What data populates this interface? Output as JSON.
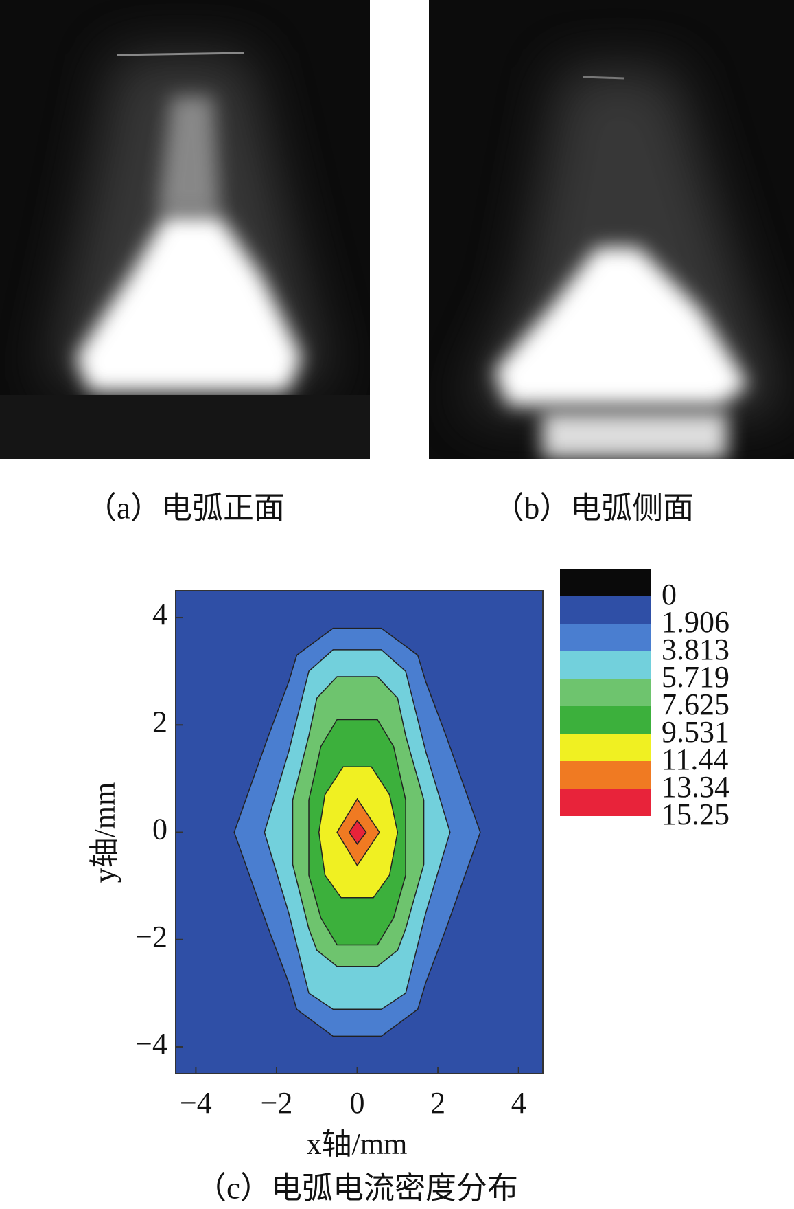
{
  "panels": [
    {
      "caption": "（a）电弧正面"
    },
    {
      "caption": "（b）电弧侧面"
    }
  ],
  "chart_data": {
    "type": "contour",
    "caption": "（c）电弧电流密度分布",
    "xlabel": "x轴/mm",
    "ylabel": "y轴/mm",
    "xlim": [
      -4.5,
      4.6
    ],
    "ylim": [
      -4.5,
      4.5
    ],
    "xticks": [
      {
        "value": -4,
        "label": "−4"
      },
      {
        "value": -2,
        "label": "−2"
      },
      0,
      2,
      4
    ],
    "yticks": [
      {
        "value": -4,
        "label": "−4"
      },
      {
        "value": -2,
        "label": "−2"
      },
      0,
      2,
      4
    ],
    "levels": [
      0,
      1.906,
      3.813,
      5.719,
      7.625,
      9.531,
      11.44,
      13.34,
      15.25
    ],
    "colors": [
      "#0a0a0a",
      "#2f4fa6",
      "#4a7ed0",
      "#72d0dc",
      "#6ec46e",
      "#3cb03c",
      "#f0f022",
      "#f07a22",
      "#e8233a"
    ],
    "contours": [
      {
        "x": [
          -0.6,
          0.6,
          1.5,
          1.7,
          2.2,
          3.05,
          2.2,
          1.7,
          1.5,
          0.6,
          -0.6,
          -1.5,
          -1.7,
          -2.2,
          -3.05,
          -2.2,
          -1.7,
          -1.5
        ],
        "y": [
          3.8,
          3.8,
          3.3,
          2.8,
          1.8,
          0,
          -1.8,
          -2.8,
          -3.3,
          -3.8,
          -3.8,
          -3.3,
          -2.8,
          -1.8,
          0,
          1.8,
          2.8,
          3.3
        ]
      },
      {
        "x": [
          -0.6,
          0.6,
          1.2,
          1.4,
          1.7,
          2.3,
          1.7,
          1.4,
          1.2,
          0.6,
          -0.6,
          -1.2,
          -1.4,
          -1.7,
          -2.3,
          -1.7,
          -1.4,
          -1.2
        ],
        "y": [
          3.4,
          3.4,
          3.0,
          2.4,
          1.5,
          0,
          -1.5,
          -2.4,
          -3.0,
          -3.3,
          -3.3,
          -3.0,
          -2.4,
          -1.5,
          0,
          1.5,
          2.4,
          3.0
        ]
      },
      {
        "x": [
          -0.5,
          0.5,
          1.0,
          1.2,
          1.65,
          1.65,
          1.2,
          1.0,
          0.5,
          -0.5,
          -1.0,
          -1.2,
          -1.6,
          -1.6,
          -1.2,
          -1.0
        ],
        "y": [
          2.9,
          2.9,
          2.5,
          1.8,
          0.6,
          -0.6,
          -1.8,
          -2.2,
          -2.5,
          -2.5,
          -2.2,
          -1.8,
          -0.6,
          0.6,
          1.8,
          2.5
        ]
      },
      {
        "x": [
          -0.5,
          0.5,
          0.9,
          1.2,
          1.2,
          0.9,
          0.5,
          -0.5,
          -0.9,
          -1.2,
          -1.2,
          -0.9
        ],
        "y": [
          2.1,
          2.1,
          1.6,
          0.6,
          -0.8,
          -1.6,
          -2.1,
          -2.1,
          -1.6,
          -0.8,
          0.6,
          1.6
        ]
      },
      {
        "x": [
          -0.35,
          0.35,
          0.8,
          1.0,
          0.8,
          0.4,
          -0.4,
          -0.8,
          -0.95,
          -0.8
        ],
        "y": [
          1.22,
          1.22,
          0.7,
          0,
          -0.8,
          -1.22,
          -1.22,
          -0.8,
          0,
          0.7
        ]
      },
      {
        "x": [
          0,
          0.55,
          0,
          -0.5
        ],
        "y": [
          0.62,
          0,
          -0.62,
          0
        ]
      },
      {
        "x": [
          0,
          0.22,
          0,
          -0.2
        ],
        "y": [
          0.22,
          0,
          -0.22,
          0
        ]
      }
    ]
  }
}
